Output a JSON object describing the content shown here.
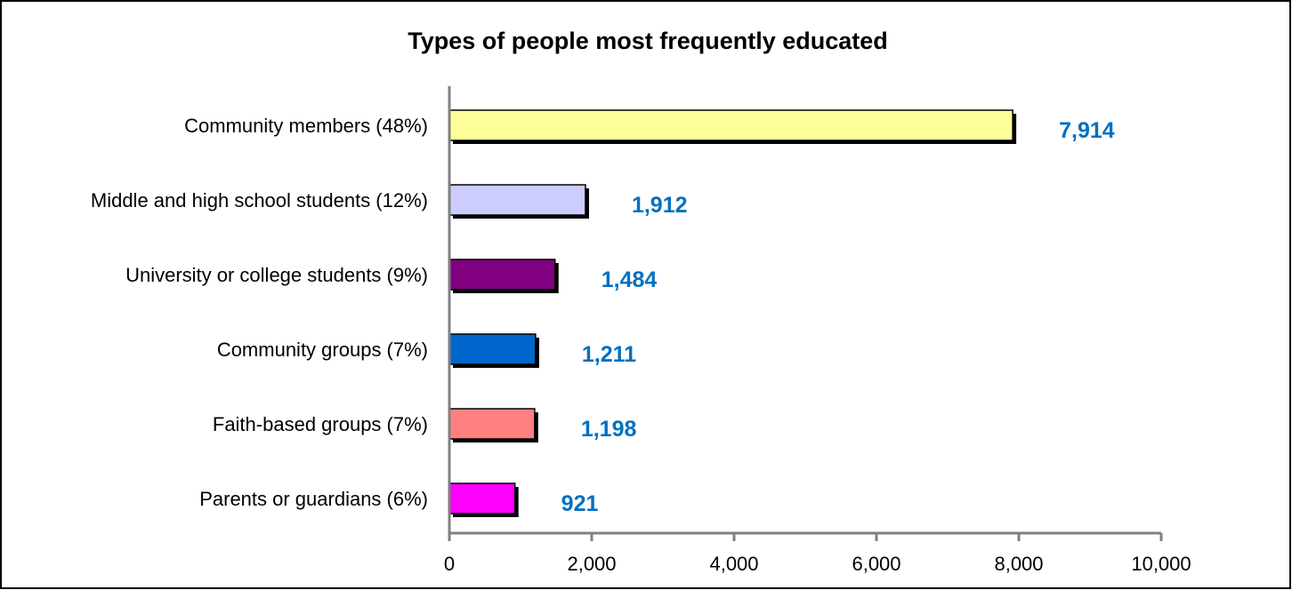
{
  "chart_data": {
    "type": "bar",
    "orientation": "horizontal",
    "title": "Types of people most frequently educated",
    "xlabel": "",
    "ylabel": "",
    "xlim": [
      0,
      10000
    ],
    "x_ticks": [
      0,
      2000,
      4000,
      6000,
      8000,
      10000
    ],
    "x_tick_labels": [
      "0",
      "2,000",
      "4,000",
      "6,000",
      "8,000",
      "10,000"
    ],
    "categories": [
      "Community members (48%)",
      "Middle and high school students (12%)",
      "University or college students (9%)",
      "Community groups (7%)",
      "Faith-based groups (7%)",
      "Parents or guardians (6%)"
    ],
    "values": [
      7914,
      1912,
      1484,
      1211,
      1198,
      921
    ],
    "data_labels": [
      "7,914",
      "1,912",
      "1,484",
      "1,211",
      "1,198",
      "921"
    ],
    "bar_colors": [
      "#FFFF99",
      "#CCCCFF",
      "#800080",
      "#0066CC",
      "#FF8080",
      "#FF00FF"
    ],
    "data_label_color": "#0070C0",
    "grid": false,
    "legend": "none"
  }
}
